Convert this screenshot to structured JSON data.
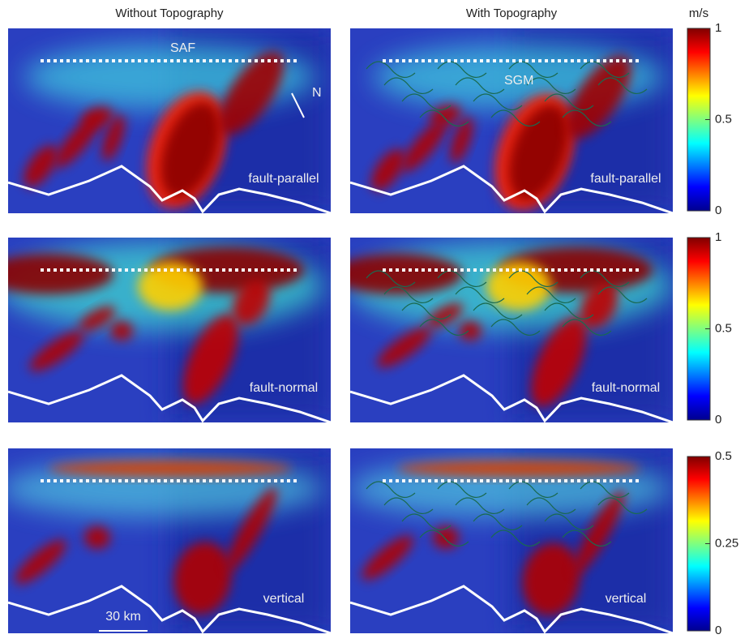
{
  "columns": [
    "Without Topography",
    "With Topography"
  ],
  "colorbar_unit": "m/s",
  "rows": [
    {
      "component": "fault-parallel",
      "colorbar": {
        "lim": [
          0,
          1
        ],
        "ticks": [
          0,
          0.5,
          1
        ]
      }
    },
    {
      "component": "fault-normal",
      "colorbar": {
        "lim": [
          0,
          1
        ],
        "ticks": [
          0,
          0.5,
          1
        ]
      }
    },
    {
      "component": "vertical",
      "colorbar": {
        "lim": [
          0,
          0.5
        ],
        "ticks": [
          0,
          0.25,
          0.5
        ]
      }
    }
  ],
  "annotations": {
    "fault": "SAF",
    "north": "N",
    "mountains": "SGM",
    "scale": "30 km"
  }
}
